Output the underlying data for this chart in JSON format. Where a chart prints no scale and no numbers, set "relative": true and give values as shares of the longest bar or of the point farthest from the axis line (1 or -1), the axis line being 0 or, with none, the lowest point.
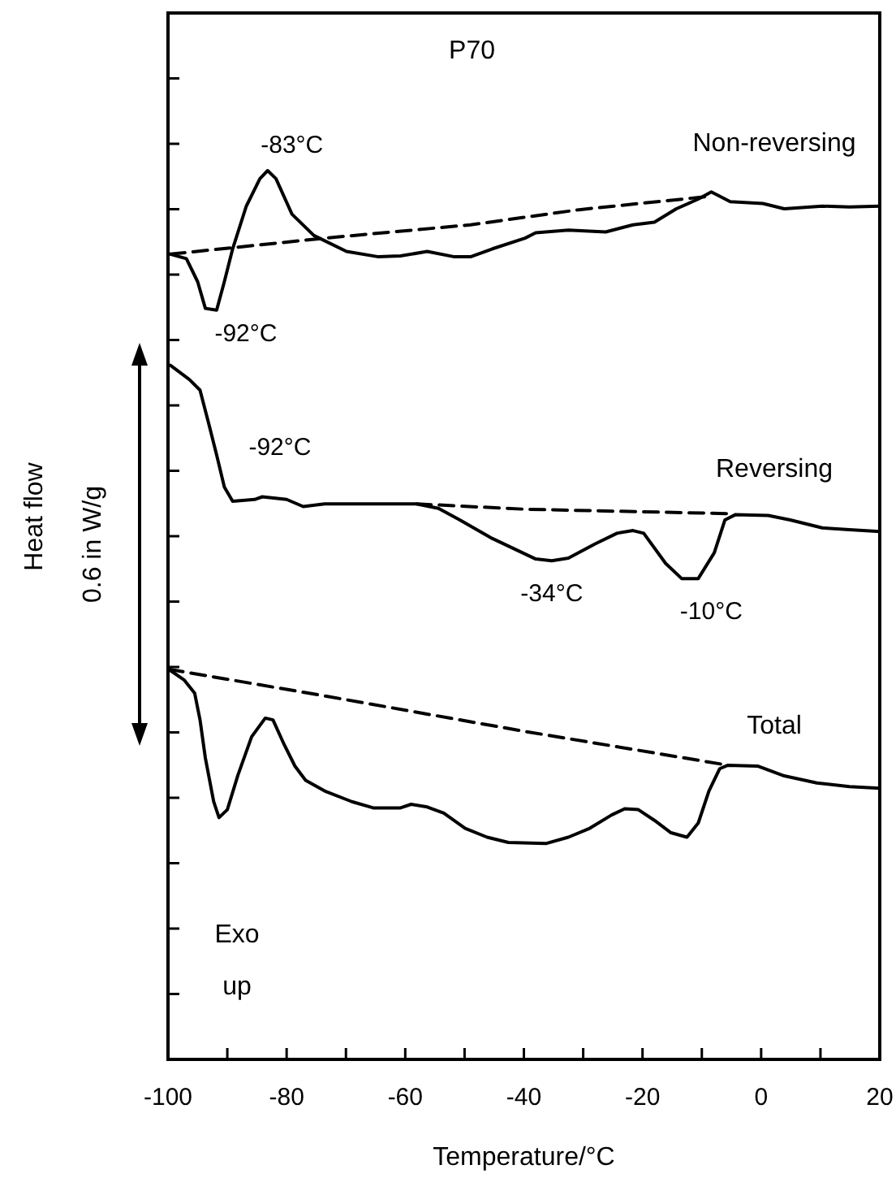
{
  "chart_data": {
    "type": "line",
    "relative": true,
    "title": "P70",
    "xlabel": "Temperature/°C",
    "ylabel": "Heat flow",
    "xlim": [
      -100,
      20
    ],
    "xticks": [
      -100,
      {
        "value": -90,
        "label": null
      },
      -80,
      {
        "value": -70,
        "label": null
      },
      -60,
      {
        "value": -50,
        "label": null
      },
      -40,
      {
        "value": -30,
        "label": null
      },
      -20,
      {
        "value": -10,
        "label": null
      },
      0,
      {
        "value": 10,
        "label": null
      },
      20
    ],
    "line_style": "solid",
    "marker": "none",
    "series": [
      {
        "name": "Non-reversing",
        "color": "#000000",
        "x": [
          -99.6,
          -96.9,
          -95.0,
          -93.7,
          -91.8,
          -90.5,
          -89.1,
          -86.8,
          -84.5,
          -83.2,
          -81.8,
          -79.1,
          -75.4,
          -69.9,
          -64.5,
          -60.8,
          -56.3,
          -51.7,
          -49.0,
          -45.3,
          -39.8,
          -38.0,
          -32.5,
          -26.2,
          -21.6,
          -18.0,
          -14.3,
          -10.6,
          -8.4,
          -5.2,
          0.3,
          3.9,
          10.3,
          14.9,
          20
        ],
        "values": [
          0.906,
          0.901,
          0.875,
          0.845,
          0.843,
          0.875,
          0.912,
          0.96,
          0.991,
          1.0,
          0.991,
          0.951,
          0.927,
          0.909,
          0.903,
          0.904,
          0.909,
          0.903,
          0.903,
          0.912,
          0.924,
          0.93,
          0.933,
          0.931,
          0.939,
          0.942,
          0.957,
          0.968,
          0.976,
          0.965,
          0.963,
          0.957,
          0.96,
          0.959,
          0.96
        ]
      },
      {
        "color": "#000000",
        "line_style": "dashed",
        "x": [
          -99.6,
          -73.6,
          -49.0,
          -30.7,
          -8.8
        ],
        "values": [
          0.906,
          0.924,
          0.939,
          0.956,
          0.971
        ]
      },
      {
        "name": "Reversing",
        "color": "#000000",
        "x": [
          -99.6,
          -96.4,
          -94.6,
          -93.2,
          -91.8,
          -90.5,
          -89.1,
          -85.4,
          -84.1,
          -80.0,
          -77.2,
          -73.6,
          -58.1,
          -54.4,
          -50.8,
          -45.3,
          -38.0,
          -35.3,
          -32.5,
          -28.0,
          -24.3,
          -21.6,
          -19.8,
          -16.1,
          -13.4,
          -10.6,
          -7.9,
          -6.1,
          -4.3,
          1.2,
          4.9,
          10.3,
          14.9,
          20
        ],
        "values": [
          0.781,
          0.765,
          0.753,
          0.717,
          0.68,
          0.644,
          0.628,
          0.63,
          0.633,
          0.63,
          0.622,
          0.625,
          0.625,
          0.62,
          0.607,
          0.586,
          0.563,
          0.561,
          0.564,
          0.58,
          0.592,
          0.595,
          0.592,
          0.558,
          0.541,
          0.541,
          0.57,
          0.607,
          0.613,
          0.612,
          0.607,
          0.598,
          0.596,
          0.594
        ]
      },
      {
        "color": "#000000",
        "line_style": "dashed",
        "x": [
          -58.1,
          -39.8,
          -5.2
        ],
        "values": [
          0.625,
          0.619,
          0.614
        ]
      },
      {
        "name": "Total",
        "color": "#000000",
        "x": [
          -99.9,
          -97.3,
          -95.5,
          -94.6,
          -93.7,
          -92.3,
          -91.4,
          -90.0,
          -88.2,
          -85.9,
          -83.6,
          -82.3,
          -80.4,
          -78.6,
          -76.8,
          -73.6,
          -69.0,
          -65.4,
          -60.8,
          -59.0,
          -56.3,
          -53.5,
          -49.9,
          -46.2,
          -42.6,
          -36.2,
          -32.5,
          -28.9,
          -25.2,
          -23.0,
          -20.7,
          -18.0,
          -15.2,
          -12.5,
          -10.6,
          -8.8,
          -7.0,
          -5.6,
          -0.6,
          3.9,
          9.4,
          14.9,
          20
        ],
        "values": [
          0.439,
          0.427,
          0.412,
          0.382,
          0.339,
          0.29,
          0.272,
          0.281,
          0.32,
          0.363,
          0.384,
          0.382,
          0.354,
          0.33,
          0.314,
          0.302,
          0.29,
          0.283,
          0.283,
          0.287,
          0.284,
          0.277,
          0.26,
          0.25,
          0.244,
          0.243,
          0.25,
          0.26,
          0.275,
          0.282,
          0.281,
          0.269,
          0.255,
          0.25,
          0.266,
          0.302,
          0.327,
          0.331,
          0.33,
          0.319,
          0.311,
          0.307,
          0.305
        ]
      },
      {
        "color": "#000000",
        "line_style": "dashed",
        "x": [
          -99.9,
          -73.6,
          -39.8,
          -5.6
        ],
        "values": [
          0.439,
          0.409,
          0.369,
          0.331
        ]
      }
    ],
    "annotations": [
      {
        "text": "-83°C",
        "x": -83.2,
        "y": 1.0
      },
      {
        "text": "-92°C",
        "x": -91.8,
        "y": 0.843
      },
      {
        "text": "-92°C",
        "x": -91.8,
        "y": 0.68
      },
      {
        "text": "-34°C",
        "x": -35.3,
        "y": 0.561
      },
      {
        "text": "-10°C",
        "x": -10.6,
        "y": 0.541
      },
      "0.6 in W/g",
      "Exo up"
    ]
  }
}
